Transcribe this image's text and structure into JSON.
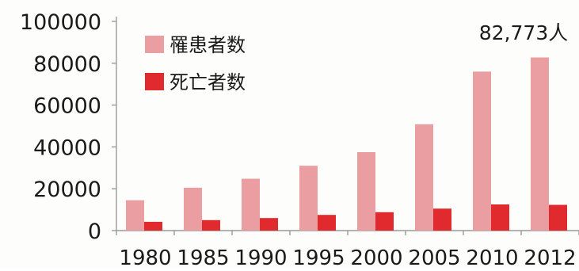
{
  "chart_data": {
    "type": "bar",
    "categories": [
      "1980",
      "1985",
      "1990",
      "1995",
      "2000",
      "2005",
      "2010",
      "2012"
    ],
    "series": [
      {
        "name": "罹患者数",
        "color": "#ea9ea2",
        "values": [
          14500,
          20500,
          24800,
          31000,
          37500,
          50800,
          76000,
          82773
        ]
      },
      {
        "name": "死亡者数",
        "color": "#e02a2e",
        "values": [
          4200,
          5000,
          6000,
          7500,
          8800,
          10500,
          12500,
          12300
        ]
      }
    ],
    "y_ticks": [
      "0",
      "20000",
      "40000",
      "60000",
      "80000",
      "100000"
    ],
    "ylim": [
      0,
      100000
    ],
    "annotation": "82,773人",
    "legend_position": "top-left",
    "grid": false,
    "axis_color": "#9a9a9a",
    "text_color": "#1a1a1a"
  }
}
